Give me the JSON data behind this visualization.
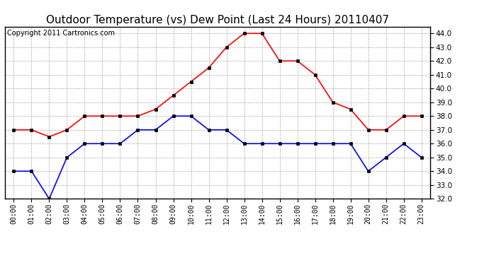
{
  "title": "Outdoor Temperature (vs) Dew Point (Last 24 Hours) 20110407",
  "copyright_text": "Copyright 2011 Cartronics.com",
  "hours": [
    "00:00",
    "01:00",
    "02:00",
    "03:00",
    "04:00",
    "05:00",
    "06:00",
    "07:00",
    "08:00",
    "09:00",
    "10:00",
    "11:00",
    "12:00",
    "13:00",
    "14:00",
    "15:00",
    "16:00",
    "17:00",
    "18:00",
    "19:00",
    "20:00",
    "21:00",
    "22:00",
    "23:00"
  ],
  "temp_red": [
    37.0,
    37.0,
    36.5,
    37.0,
    38.0,
    38.0,
    38.0,
    38.0,
    38.5,
    39.5,
    40.5,
    41.5,
    43.0,
    44.0,
    44.0,
    42.0,
    42.0,
    41.0,
    39.0,
    38.5,
    37.0,
    37.0,
    38.0,
    38.0
  ],
  "temp_blue": [
    34.0,
    34.0,
    32.0,
    35.0,
    36.0,
    36.0,
    36.0,
    37.0,
    37.0,
    38.0,
    38.0,
    37.0,
    37.0,
    36.0,
    36.0,
    36.0,
    36.0,
    36.0,
    36.0,
    36.0,
    34.0,
    35.0,
    36.0,
    35.0
  ],
  "ylim": [
    32.0,
    44.5
  ],
  "yticks": [
    32.0,
    33.0,
    34.0,
    35.0,
    36.0,
    37.0,
    38.0,
    39.0,
    40.0,
    41.0,
    42.0,
    43.0,
    44.0
  ],
  "red_color": "#ff0000",
  "blue_color": "#0000ff",
  "bg_color": "#ffffff",
  "plot_bg_color": "#ffffff",
  "grid_color": "#aaaaaa",
  "title_fontsize": 11,
  "copyright_fontsize": 7
}
